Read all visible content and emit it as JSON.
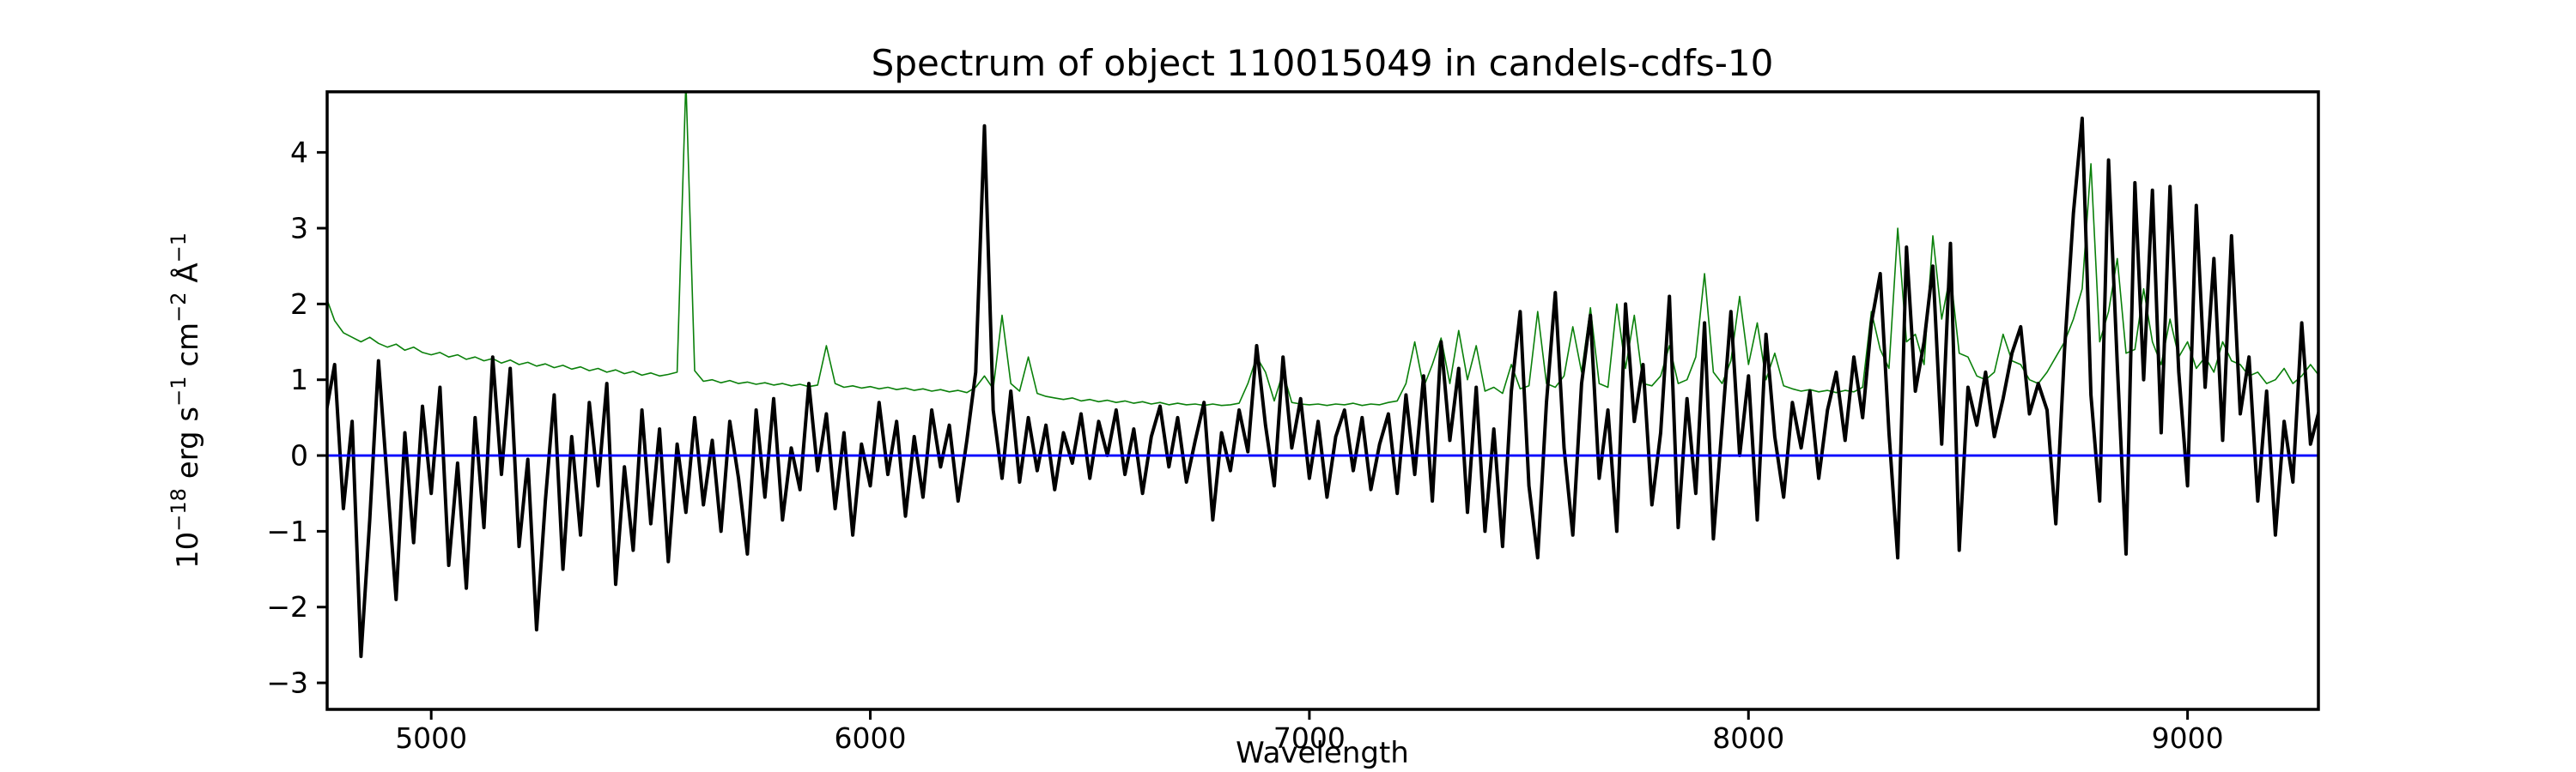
{
  "figure": {
    "title": "Spectrum of object 110015049 in candels-cdfs-10",
    "xlabel": "Wavelength",
    "ylabel_parts": {
      "p1": "10",
      "e1": "−18",
      "p2": " erg s",
      "e2": "−1",
      "p3": " cm",
      "e3": "−2",
      "p4": " Å",
      "e4": "−1"
    },
    "colors": {
      "flux": "#000000",
      "error": "#0a800a",
      "zero_line": "#0000ff",
      "spines": "#000000",
      "background": "#ffffff"
    }
  },
  "chart_data": {
    "type": "line",
    "title": "Spectrum of object 110015049 in candels-cdfs-10",
    "xlabel": "Wavelength",
    "ylabel": "10^-18 erg s^-1 cm^-2 Å^-1",
    "grid": false,
    "legend": null,
    "xlim": [
      4763,
      9298
    ],
    "ylim": [
      -3.35,
      4.8
    ],
    "xticks": [
      5000,
      6000,
      7000,
      8000,
      9000
    ],
    "xtick_labels": [
      "5000",
      "6000",
      "7000",
      "8000",
      "9000"
    ],
    "yticks": [
      4,
      3,
      2,
      1,
      0,
      -1,
      -2,
      -3
    ],
    "ytick_labels": [
      "4",
      "3",
      "2",
      "1",
      "0",
      "−1",
      "−2",
      "−3"
    ],
    "x_start": 4760,
    "x_step": 20,
    "series": [
      {
        "name": "error-spectrum",
        "color": "#0a800a",
        "linewidth": 1.6,
        "values": [
          2.1,
          1.78,
          1.62,
          1.56,
          1.5,
          1.56,
          1.48,
          1.43,
          1.47,
          1.39,
          1.43,
          1.36,
          1.33,
          1.36,
          1.3,
          1.33,
          1.27,
          1.3,
          1.25,
          1.28,
          1.22,
          1.26,
          1.2,
          1.23,
          1.18,
          1.21,
          1.16,
          1.19,
          1.14,
          1.17,
          1.12,
          1.15,
          1.1,
          1.13,
          1.08,
          1.11,
          1.06,
          1.09,
          1.05,
          1.07,
          1.1,
          4.95,
          1.12,
          0.98,
          1.0,
          0.96,
          0.99,
          0.95,
          0.97,
          0.94,
          0.96,
          0.93,
          0.95,
          0.92,
          0.94,
          0.91,
          0.93,
          1.45,
          0.95,
          0.9,
          0.92,
          0.89,
          0.91,
          0.88,
          0.9,
          0.87,
          0.89,
          0.86,
          0.88,
          0.85,
          0.87,
          0.84,
          0.86,
          0.83,
          0.9,
          1.05,
          0.88,
          1.85,
          0.95,
          0.85,
          1.3,
          0.82,
          0.78,
          0.76,
          0.74,
          0.76,
          0.72,
          0.74,
          0.71,
          0.73,
          0.7,
          0.72,
          0.69,
          0.71,
          0.68,
          0.7,
          0.67,
          0.69,
          0.67,
          0.68,
          0.66,
          0.68,
          0.66,
          0.67,
          0.69,
          0.95,
          1.3,
          1.1,
          0.72,
          1.1,
          0.7,
          0.68,
          0.67,
          0.68,
          0.66,
          0.68,
          0.67,
          0.69,
          0.66,
          0.68,
          0.67,
          0.7,
          0.72,
          0.95,
          1.5,
          0.9,
          1.2,
          1.55,
          0.95,
          1.65,
          1.0,
          1.45,
          0.85,
          0.9,
          0.82,
          1.2,
          0.88,
          0.92,
          1.9,
          0.95,
          0.9,
          1.05,
          1.7,
          1.1,
          1.95,
          0.95,
          0.9,
          2.0,
          1.15,
          1.85,
          0.95,
          0.92,
          1.05,
          1.45,
          0.95,
          1.0,
          1.3,
          2.4,
          1.1,
          0.95,
          1.25,
          2.1,
          1.2,
          1.75,
          1.0,
          1.35,
          0.92,
          0.88,
          0.85,
          0.87,
          0.84,
          0.86,
          0.83,
          0.86,
          0.84,
          0.9,
          1.9,
          1.4,
          1.15,
          3.0,
          1.5,
          1.6,
          1.2,
          2.9,
          1.8,
          2.4,
          1.35,
          1.3,
          1.05,
          1.0,
          1.1,
          1.6,
          1.25,
          1.2,
          1.0,
          0.95,
          1.1,
          1.3,
          1.5,
          1.8,
          2.2,
          3.85,
          1.5,
          1.9,
          2.6,
          1.35,
          1.4,
          2.2,
          1.5,
          1.2,
          1.8,
          1.3,
          1.5,
          1.15,
          1.3,
          1.1,
          1.5,
          1.25,
          1.2,
          1.05,
          1.1,
          0.95,
          1.0,
          1.15,
          0.95,
          1.05,
          1.2,
          1.05
        ]
      },
      {
        "name": "flux-spectrum",
        "color": "#000000",
        "linewidth": 4,
        "values": [
          0.55,
          1.2,
          -0.7,
          0.45,
          -2.65,
          -0.85,
          1.25,
          -0.35,
          -1.9,
          0.3,
          -1.15,
          0.65,
          -0.5,
          0.9,
          -1.45,
          -0.1,
          -1.75,
          0.5,
          -0.95,
          1.3,
          -0.25,
          1.15,
          -1.2,
          -0.05,
          -2.3,
          -0.6,
          0.8,
          -1.5,
          0.25,
          -1.05,
          0.7,
          -0.4,
          0.95,
          -1.7,
          -0.15,
          -1.25,
          0.6,
          -0.9,
          0.35,
          -1.4,
          0.15,
          -0.75,
          0.5,
          -0.65,
          0.2,
          -1.0,
          0.45,
          -0.3,
          -1.3,
          0.6,
          -0.55,
          0.75,
          -0.85,
          0.1,
          -0.45,
          0.95,
          -0.2,
          0.55,
          -0.7,
          0.3,
          -1.05,
          0.15,
          -0.4,
          0.7,
          -0.25,
          0.45,
          -0.8,
          0.25,
          -0.55,
          0.6,
          -0.15,
          0.4,
          -0.6,
          0.2,
          1.1,
          4.35,
          0.6,
          -0.3,
          0.85,
          -0.35,
          0.5,
          -0.2,
          0.4,
          -0.45,
          0.3,
          -0.1,
          0.55,
          -0.3,
          0.45,
          0.0,
          0.6,
          -0.25,
          0.35,
          -0.5,
          0.25,
          0.65,
          -0.15,
          0.5,
          -0.35,
          0.2,
          0.7,
          -0.85,
          0.3,
          -0.2,
          0.6,
          0.05,
          1.45,
          0.4,
          -0.4,
          1.3,
          0.1,
          0.75,
          -0.3,
          0.45,
          -0.55,
          0.25,
          0.6,
          -0.2,
          0.5,
          -0.45,
          0.15,
          0.55,
          -0.5,
          0.8,
          -0.25,
          1.05,
          -0.6,
          1.5,
          0.2,
          1.15,
          -0.75,
          0.9,
          -1.0,
          0.35,
          -1.2,
          0.85,
          1.9,
          -0.4,
          -1.35,
          0.7,
          2.15,
          0.1,
          -1.05,
          0.95,
          1.85,
          -0.3,
          0.6,
          -1.0,
          2.0,
          0.45,
          1.2,
          -0.65,
          0.3,
          2.1,
          -0.95,
          0.75,
          -0.5,
          1.75,
          -1.1,
          0.4,
          1.9,
          0.0,
          1.05,
          -0.85,
          1.6,
          0.25,
          -0.55,
          0.7,
          0.1,
          0.85,
          -0.3,
          0.6,
          1.1,
          0.2,
          1.3,
          0.5,
          1.75,
          2.4,
          0.3,
          -1.35,
          2.75,
          0.85,
          1.5,
          2.5,
          0.15,
          2.8,
          -1.25,
          0.9,
          0.4,
          1.1,
          0.25,
          0.75,
          1.35,
          1.7,
          0.55,
          0.95,
          0.6,
          -0.9,
          1.4,
          3.2,
          4.45,
          0.8,
          -0.6,
          3.9,
          1.2,
          -1.3,
          3.6,
          1.0,
          3.5,
          0.3,
          3.55,
          1.1,
          -0.4,
          3.3,
          0.9,
          2.6,
          0.2,
          2.9,
          0.55,
          1.3,
          -0.6,
          0.85,
          -1.05,
          0.45,
          -0.35,
          1.75,
          0.15,
          0.6
        ]
      },
      {
        "name": "zero-line",
        "color": "#0000ff",
        "linewidth": 2.8,
        "y": 0
      }
    ]
  }
}
